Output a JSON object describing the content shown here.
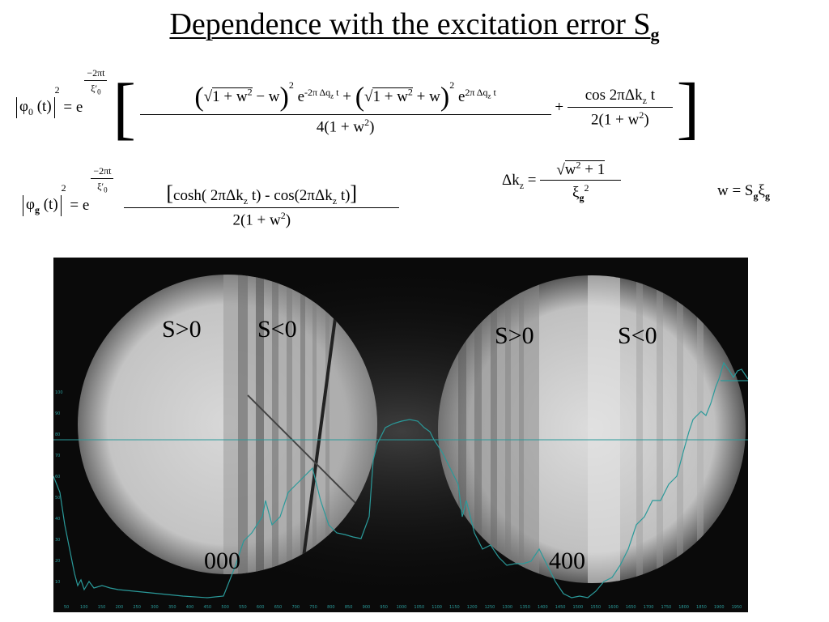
{
  "title": {
    "text": "Dependence with the excitation error S",
    "subscript": "g"
  },
  "equations": {
    "eq1_lhs": "φ₀(t)",
    "eq2_lhs": "φg(t)",
    "eq3": "Δkz = √(w² + 1) / ξg²",
    "eq4": "w = Sg ξg"
  },
  "image_labels": {
    "left_pos": "S>0",
    "left_neg": "S<0",
    "right_pos": "S>0",
    "right_neg": "S<0",
    "left_spot": "000",
    "right_spot": "400"
  },
  "profile": {
    "color": "#2a9a9a",
    "tick_labels": [
      "50",
      "100",
      "150",
      "200",
      "250",
      "300",
      "350",
      "400",
      "450",
      "500",
      "550",
      "600",
      "650",
      "700",
      "750",
      "800",
      "850",
      "900",
      "950",
      "1000",
      "1050",
      "1100",
      "1150",
      "1200",
      "1250",
      "1300",
      "1350",
      "1400",
      "1450",
      "1500",
      "1550",
      "1600",
      "1650",
      "1700",
      "1750",
      "1800",
      "1850",
      "1900",
      "1950"
    ],
    "y_tick_labels": [
      "100",
      "90",
      "80",
      "70",
      "60",
      "50",
      "40",
      "30",
      "20",
      "10"
    ]
  }
}
